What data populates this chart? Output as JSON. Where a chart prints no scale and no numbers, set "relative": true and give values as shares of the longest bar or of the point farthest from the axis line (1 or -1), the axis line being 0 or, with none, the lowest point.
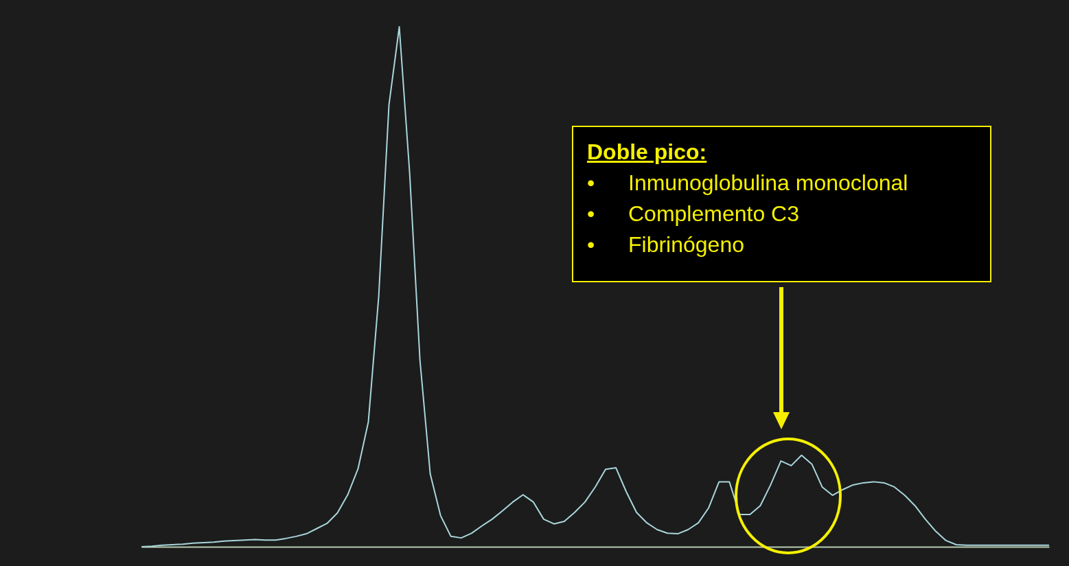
{
  "chart_data": {
    "type": "line",
    "relative": true,
    "categories": [
      null,
      null,
      null,
      null,
      null,
      null,
      null,
      null,
      null,
      null,
      null,
      null,
      null,
      null,
      null,
      null,
      null,
      null,
      null,
      null,
      null,
      null,
      null,
      null,
      null,
      null,
      null,
      null,
      null,
      null,
      null,
      null,
      null,
      null,
      null,
      null,
      null,
      null,
      null,
      null,
      null,
      null,
      null,
      null,
      null,
      null,
      null,
      null,
      null,
      null,
      null,
      null,
      null,
      null,
      null,
      null,
      null,
      null,
      null,
      null,
      null,
      null,
      null,
      null,
      null,
      null,
      null,
      null,
      null,
      null,
      null,
      null,
      null,
      null,
      null,
      null,
      null,
      null,
      null,
      null,
      null,
      null,
      null,
      null,
      null,
      null,
      null,
      null,
      null
    ],
    "series": [
      {
        "color": "#a9d6dc",
        "values": [
          0,
          0.001,
          0.003,
          0.004,
          0.005,
          0.007,
          0.008,
          0.009,
          0.011,
          0.012,
          0.013,
          0.014,
          0.013,
          0.013,
          0.016,
          0.02,
          0.025,
          0.035,
          0.045,
          0.065,
          0.1,
          0.15,
          0.24,
          0.48,
          0.85,
          1.0,
          0.72,
          0.36,
          0.14,
          0.06,
          0.02,
          0.017,
          0.026,
          0.04,
          0.053,
          0.069,
          0.086,
          0.1,
          0.086,
          0.053,
          0.044,
          0.049,
          0.066,
          0.086,
          0.115,
          0.149,
          0.152,
          0.106,
          0.066,
          0.046,
          0.033,
          0.026,
          0.025,
          0.033,
          0.046,
          0.075,
          0.125,
          0.125,
          0.062,
          0.062,
          0.079,
          0.119,
          0.165,
          0.156,
          0.176,
          0.159,
          0.115,
          0.099,
          0.11,
          0.119,
          0.123,
          0.125,
          0.123,
          0.115,
          0.099,
          0.079,
          0.053,
          0.03,
          0.012,
          0.004,
          0.003,
          0.003,
          0.003,
          0.003,
          0.003,
          0.003,
          0.003,
          0.003,
          0.003
        ]
      }
    ],
    "annotations": [
      "Doble pico:",
      "• Inmunoglobulina monoclonal",
      "• Complemento C3",
      "• Fibrinógeno"
    ],
    "grid": false
  }
}
